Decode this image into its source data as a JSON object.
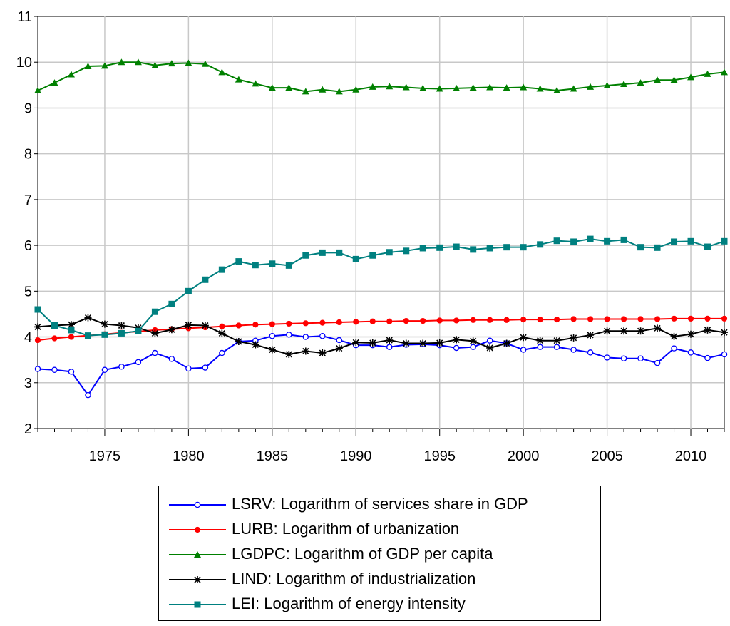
{
  "chart_data": {
    "type": "line",
    "x": [
      1971,
      1972,
      1973,
      1974,
      1975,
      1976,
      1977,
      1978,
      1979,
      1980,
      1981,
      1982,
      1983,
      1984,
      1985,
      1986,
      1987,
      1988,
      1989,
      1990,
      1991,
      1992,
      1993,
      1994,
      1995,
      1996,
      1997,
      1998,
      1999,
      2000,
      2001,
      2002,
      2003,
      2004,
      2005,
      2006,
      2007,
      2008,
      2009,
      2010,
      2011,
      2012
    ],
    "xlim": [
      1971,
      2012
    ],
    "ylim": [
      2,
      11
    ],
    "xticks": [
      1975,
      1980,
      1985,
      1990,
      1995,
      2000,
      2005,
      2010
    ],
    "yticks": [
      2,
      3,
      4,
      5,
      6,
      7,
      8,
      9,
      10,
      11
    ],
    "grid": true,
    "legend_position": "bottom",
    "series": [
      {
        "name": "LSRV: Logarithm of services share in GDP",
        "color": "#0000ff",
        "marker": "open-circle",
        "values": [
          3.3,
          3.28,
          3.24,
          2.73,
          3.28,
          3.35,
          3.45,
          3.65,
          3.52,
          3.31,
          3.33,
          3.65,
          3.9,
          3.92,
          4.02,
          4.05,
          4.0,
          4.02,
          3.93,
          3.82,
          3.82,
          3.78,
          3.83,
          3.84,
          3.82,
          3.76,
          3.78,
          3.92,
          3.86,
          3.72,
          3.78,
          3.78,
          3.72,
          3.66,
          3.55,
          3.53,
          3.53,
          3.43,
          3.75,
          3.66,
          3.54,
          3.62
        ]
      },
      {
        "name": "LURB: Logarithm of urbanization",
        "color": "#ff0000",
        "marker": "filled-circle",
        "values": [
          3.93,
          3.97,
          4.0,
          4.03,
          4.06,
          4.09,
          4.12,
          4.15,
          4.17,
          4.19,
          4.21,
          4.23,
          4.25,
          4.27,
          4.28,
          4.29,
          4.3,
          4.31,
          4.32,
          4.33,
          4.34,
          4.34,
          4.35,
          4.35,
          4.36,
          4.36,
          4.37,
          4.37,
          4.37,
          4.38,
          4.38,
          4.38,
          4.39,
          4.39,
          4.39,
          4.39,
          4.39,
          4.39,
          4.4,
          4.4,
          4.4,
          4.4
        ]
      },
      {
        "name": "LGDPC: Logarithm of GDP per capita",
        "color": "#008000",
        "marker": "filled-triangle",
        "values": [
          9.38,
          9.55,
          9.73,
          9.91,
          9.92,
          10.0,
          10.0,
          9.93,
          9.97,
          9.98,
          9.96,
          9.78,
          9.62,
          9.53,
          9.44,
          9.44,
          9.36,
          9.4,
          9.36,
          9.4,
          9.46,
          9.47,
          9.45,
          9.43,
          9.42,
          9.43,
          9.44,
          9.45,
          9.44,
          9.45,
          9.42,
          9.38,
          9.42,
          9.46,
          9.49,
          9.52,
          9.55,
          9.61,
          9.61,
          9.67,
          9.74,
          9.78
        ]
      },
      {
        "name": "LIND: Logarithm of industrialization",
        "color": "#000000",
        "marker": "asterisk",
        "values": [
          4.22,
          4.25,
          4.27,
          4.42,
          4.28,
          4.25,
          4.2,
          4.08,
          4.16,
          4.26,
          4.25,
          4.08,
          3.9,
          3.83,
          3.72,
          3.62,
          3.69,
          3.65,
          3.75,
          3.88,
          3.87,
          3.93,
          3.86,
          3.86,
          3.87,
          3.94,
          3.91,
          3.76,
          3.86,
          3.99,
          3.92,
          3.92,
          3.98,
          4.04,
          4.13,
          4.13,
          4.13,
          4.19,
          4.01,
          4.06,
          4.15,
          4.1
        ]
      },
      {
        "name": "LEI: Logarithm of energy intensity",
        "color": "#008080",
        "marker": "filled-square",
        "values": [
          4.6,
          4.25,
          4.15,
          4.03,
          4.05,
          4.08,
          4.13,
          4.55,
          4.72,
          5.0,
          5.25,
          5.47,
          5.65,
          5.57,
          5.6,
          5.56,
          5.78,
          5.84,
          5.84,
          5.7,
          5.78,
          5.85,
          5.88,
          5.94,
          5.95,
          5.97,
          5.91,
          5.94,
          5.96,
          5.96,
          6.02,
          6.1,
          6.08,
          6.14,
          6.09,
          6.12,
          5.96,
          5.95,
          6.08,
          6.09,
          5.97,
          6.09
        ]
      }
    ]
  }
}
